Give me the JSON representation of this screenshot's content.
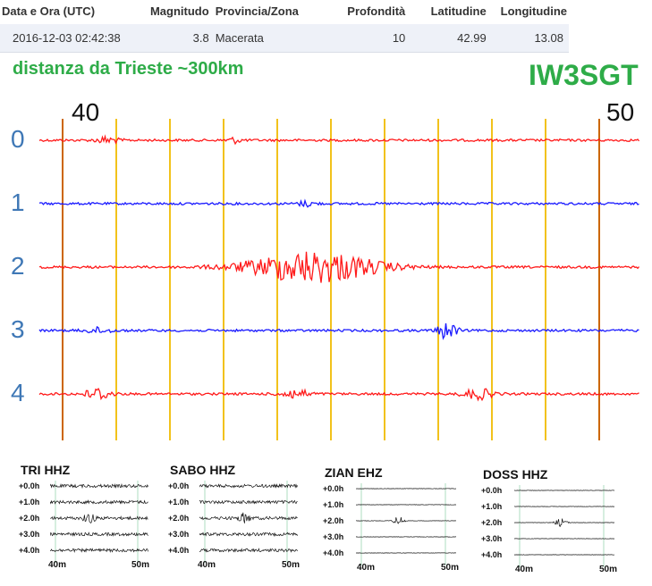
{
  "quake_table": {
    "headers": [
      "Data e Ora (UTC)",
      "Magnitudo",
      "Provincia/Zona",
      "Profondità",
      "Latitudine",
      "Longitudine"
    ],
    "row": [
      "2016-12-03 02:42:38",
      "3.8",
      "Macerata",
      "10",
      "42.99",
      "13.08"
    ]
  },
  "distance_label": "distanza da Trieste ~300km",
  "station_callsign": "IW3SGT",
  "seismogram": {
    "minute_start_label": "40",
    "minute_end_label": "50",
    "trace_labels": [
      "0",
      "1",
      "2",
      "3",
      "4"
    ],
    "trace_colors": [
      "#ff1a1a",
      "#1a1aff",
      "#ff1a1a",
      "#1a1aff",
      "#ff1a1a"
    ],
    "minute_line_color_major": "#cc6600",
    "minute_line_color_minor": "#f2c21b"
  },
  "mini_stations": [
    {
      "name": "TRI HHZ",
      "rows": [
        "+0.0h",
        "+1.0h",
        "+2.0h",
        "+3.0h",
        "+4.0h"
      ],
      "x_start": "40m",
      "x_end": "50m"
    },
    {
      "name": "SABO HHZ",
      "rows": [
        "+0.0h",
        "+1.0h",
        "+2.0h",
        "+3.0h",
        "+4.0h"
      ],
      "x_start": "40m",
      "x_end": "50m"
    },
    {
      "name": "ZIAN EHZ",
      "rows": [
        "+0.0h",
        "+1.0h",
        "+2.0h",
        "+3.0h",
        "+4.0h"
      ],
      "x_start": "40m",
      "x_end": "50m"
    },
    {
      "name": "DOSS HHZ",
      "rows": [
        "+0.0h",
        "+1.0h",
        "+2.0h",
        "+3.0h",
        "+4.0h"
      ],
      "x_start": "40m",
      "x_end": "50m"
    }
  ]
}
